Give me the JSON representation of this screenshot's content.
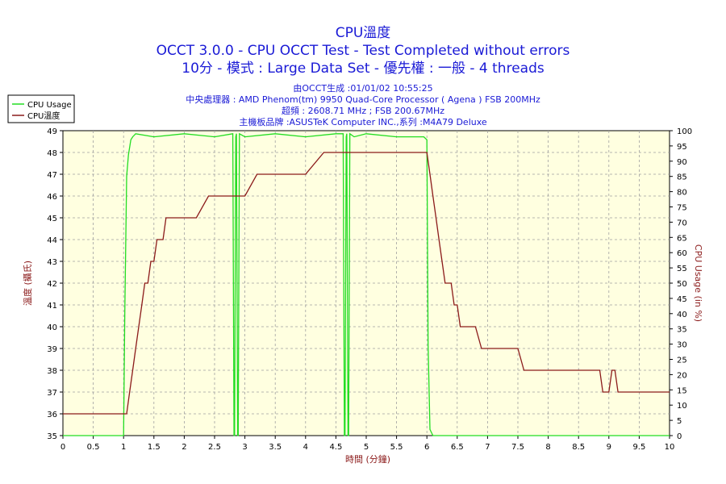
{
  "chart_data": {
    "type": "line",
    "title": "CPU溫度",
    "subtitle_lines": [
      "OCCT 3.0.0 - CPU OCCT Test - Test Completed without errors",
      "10分 - 模式 : Large Data Set - 優先權 : 一般 - 4 threads"
    ],
    "info_lines": [
      "由OCCT生成 :01/01/02 10:55:25",
      "中央處理器 : AMD Phenom(tm) 9950 Quad-Core Processor ( Agena ) FSB 200MHz",
      "超頻 : 2608.71 MHz ; FSB 200.67MHz",
      "主機板品牌 :ASUSTeK Computer INC.,系列 :M4A79 Deluxe"
    ],
    "xlabel": "時間 (分鐘)",
    "ylabel_left": "溫度 (攝氏)",
    "ylabel_right": "CPU Usage (in %)",
    "xlim": [
      0,
      10
    ],
    "ylim_left": [
      35,
      49
    ],
    "ylim_right": [
      0,
      100
    ],
    "x_ticks": [
      "0",
      "0.5",
      "1",
      "1.5",
      "2",
      "2.5",
      "3",
      "3.5",
      "4",
      "4.5",
      "5",
      "5.5",
      "6",
      "6.5",
      "7",
      "7.5",
      "8",
      "8.5",
      "9",
      "9.5",
      "10"
    ],
    "y_left_ticks": [
      "35",
      "36",
      "37",
      "38",
      "39",
      "40",
      "41",
      "42",
      "43",
      "44",
      "45",
      "46",
      "47",
      "48",
      "49"
    ],
    "y_right_ticks": [
      "0",
      "5",
      "10",
      "15",
      "20",
      "25",
      "30",
      "35",
      "40",
      "45",
      "50",
      "55",
      "60",
      "65",
      "70",
      "75",
      "80",
      "85",
      "90",
      "95",
      "100"
    ],
    "grid": true,
    "legend_position": "top-left",
    "colors": {
      "plot_bg": "#ffffe0",
      "grid": "#a0a0a0",
      "temp_line": "#8b1a1a",
      "usage_line": "#22dd22",
      "title": "#1a1ad6",
      "axis_label": "#8b1a1a"
    },
    "series": [
      {
        "name": "CPU Usage",
        "axis": "right",
        "x": [
          0,
          1.0,
          1.02,
          1.05,
          1.08,
          1.12,
          1.15,
          1.2,
          1.5,
          2.0,
          2.5,
          2.8,
          2.82,
          2.83,
          2.85,
          2.86,
          2.88,
          2.89,
          2.91,
          3.0,
          3.5,
          4.0,
          4.5,
          4.62,
          4.64,
          4.65,
          4.67,
          4.68,
          4.7,
          4.71,
          4.73,
          4.8,
          5.0,
          5.5,
          5.95,
          6.0,
          6.02,
          6.05,
          6.1,
          10
        ],
        "values": [
          0,
          0,
          40,
          85,
          92,
          97,
          98,
          99,
          98,
          99,
          98,
          99,
          0,
          0,
          98,
          99,
          0,
          0,
          99,
          98,
          99,
          98,
          99,
          99,
          0,
          0,
          98,
          99,
          0,
          0,
          99,
          98,
          99,
          98,
          98,
          97,
          30,
          2,
          0,
          0
        ]
      },
      {
        "name": "CPU溫度",
        "axis": "left",
        "x": [
          0,
          1.05,
          1.1,
          1.15,
          1.2,
          1.25,
          1.3,
          1.35,
          1.4,
          1.45,
          1.5,
          1.55,
          1.6,
          1.65,
          1.7,
          1.8,
          1.85,
          2.0,
          2.2,
          2.4,
          2.5,
          2.8,
          3.0,
          3.2,
          3.3,
          3.5,
          3.8,
          4.0,
          4.3,
          4.5,
          5.0,
          5.5,
          6.0,
          6.05,
          6.1,
          6.15,
          6.2,
          6.25,
          6.3,
          6.35,
          6.4,
          6.45,
          6.5,
          6.55,
          6.6,
          6.65,
          6.7,
          6.8,
          6.9,
          7.0,
          7.2,
          7.3,
          7.5,
          7.6,
          7.7,
          8.0,
          8.5,
          8.85,
          8.9,
          9.0,
          9.05,
          9.1,
          9.15,
          9.2,
          9.5,
          10.0
        ],
        "values": [
          36,
          36,
          37,
          38,
          39,
          40,
          41,
          42,
          42,
          43,
          43,
          44,
          44,
          44,
          45,
          45,
          45,
          45,
          45,
          46,
          46,
          46,
          46,
          47,
          47,
          47,
          47,
          47,
          48,
          48,
          48,
          48,
          48,
          47,
          46,
          45,
          44,
          43,
          42,
          42,
          42,
          41,
          41,
          40,
          40,
          40,
          40,
          40,
          39,
          39,
          39,
          39,
          39,
          38,
          38,
          38,
          38,
          38,
          37,
          37,
          38,
          38,
          37,
          37,
          37,
          37
        ]
      }
    ]
  }
}
